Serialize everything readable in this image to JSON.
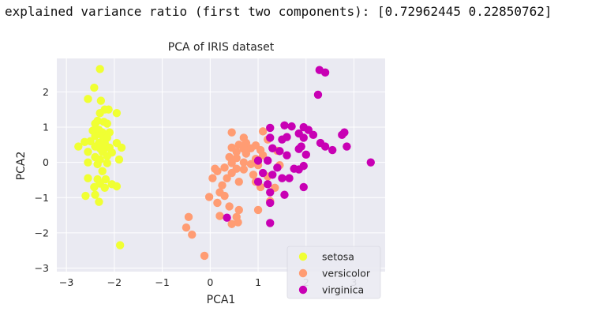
{
  "output": {
    "text": "explained variance ratio (first two components): [0.72962445 0.22850762]"
  },
  "chart_data": {
    "type": "scatter",
    "title": "PCA of IRIS dataset",
    "xlabel": "PCA1",
    "ylabel": "PCA2",
    "xlim": [
      -3.2,
      3.65
    ],
    "ylim": [
      -3.1,
      2.95
    ],
    "xticks": [
      -3,
      -2,
      -1,
      0,
      1,
      2,
      3
    ],
    "yticks": [
      -3,
      -2,
      -1,
      0,
      1,
      2
    ],
    "xtick_labels": [
      "−3",
      "−2",
      "−1",
      "0",
      "1",
      "2",
      "3"
    ],
    "ytick_labels": [
      "−3",
      "−2",
      "−1",
      "0",
      "1",
      "2"
    ],
    "grid": true,
    "background": "#eaeaf2",
    "legend_position": "lower-right",
    "series": [
      {
        "name": "setosa",
        "color": "#f0ff33",
        "points": [
          [
            -2.3,
            2.65
          ],
          [
            -2.42,
            2.12
          ],
          [
            -2.55,
            1.8
          ],
          [
            -2.28,
            1.75
          ],
          [
            -2.2,
            1.5
          ],
          [
            -2.12,
            1.5
          ],
          [
            -2.3,
            1.4
          ],
          [
            -1.95,
            1.4
          ],
          [
            -2.35,
            1.18
          ],
          [
            -2.22,
            1.15
          ],
          [
            -2.15,
            1.1
          ],
          [
            -2.4,
            1.1
          ],
          [
            -2.45,
            0.9
          ],
          [
            -2.32,
            0.92
          ],
          [
            -2.25,
            0.85
          ],
          [
            -2.1,
            0.85
          ],
          [
            -2.4,
            0.75
          ],
          [
            -2.25,
            0.75
          ],
          [
            -2.15,
            0.7
          ],
          [
            -2.5,
            0.6
          ],
          [
            -2.62,
            0.58
          ],
          [
            -2.75,
            0.45
          ],
          [
            -2.32,
            0.55
          ],
          [
            -2.2,
            0.55
          ],
          [
            -1.95,
            0.55
          ],
          [
            -2.4,
            0.45
          ],
          [
            -2.3,
            0.4
          ],
          [
            -2.2,
            0.4
          ],
          [
            -2.1,
            0.42
          ],
          [
            -1.85,
            0.42
          ],
          [
            -2.55,
            0.3
          ],
          [
            -2.25,
            0.3
          ],
          [
            -2.05,
            0.28
          ],
          [
            -2.4,
            0.15
          ],
          [
            -2.15,
            0.18
          ],
          [
            -1.9,
            0.08
          ],
          [
            -2.3,
            0.08
          ],
          [
            -2.55,
            0.0
          ],
          [
            -2.35,
            -0.05
          ],
          [
            -2.15,
            -0.02
          ],
          [
            -2.25,
            -0.25
          ],
          [
            -2.55,
            -0.45
          ],
          [
            -2.35,
            -0.48
          ],
          [
            -2.18,
            -0.48
          ],
          [
            -2.3,
            -0.6
          ],
          [
            -2.05,
            -0.62
          ],
          [
            -2.2,
            -0.72
          ],
          [
            -2.42,
            -0.7
          ],
          [
            -1.95,
            -0.68
          ],
          [
            -2.6,
            -0.95
          ],
          [
            -2.4,
            -0.92
          ],
          [
            -2.32,
            -1.12
          ],
          [
            -1.88,
            -2.35
          ]
        ]
      },
      {
        "name": "versicolor",
        "color": "#ff9c73",
        "points": [
          [
            0.45,
            0.85
          ],
          [
            1.1,
            0.88
          ],
          [
            0.7,
            0.7
          ],
          [
            1.2,
            0.65
          ],
          [
            0.75,
            0.55
          ],
          [
            0.6,
            0.5
          ],
          [
            0.95,
            0.48
          ],
          [
            0.45,
            0.42
          ],
          [
            0.85,
            0.4
          ],
          [
            0.7,
            0.38
          ],
          [
            1.05,
            0.35
          ],
          [
            1.4,
            0.33
          ],
          [
            0.55,
            0.3
          ],
          [
            0.75,
            0.25
          ],
          [
            1.1,
            0.2
          ],
          [
            0.4,
            0.15
          ],
          [
            0.55,
            0.12
          ],
          [
            0.95,
            0.1
          ],
          [
            1.2,
            0.05
          ],
          [
            0.7,
            0.0
          ],
          [
            0.45,
            -0.02
          ],
          [
            0.85,
            -0.05
          ],
          [
            1.0,
            -0.08
          ],
          [
            1.45,
            -0.08
          ],
          [
            0.1,
            -0.18
          ],
          [
            0.3,
            -0.15
          ],
          [
            0.55,
            -0.18
          ],
          [
            0.7,
            -0.2
          ],
          [
            0.15,
            -0.25
          ],
          [
            0.45,
            -0.3
          ],
          [
            0.9,
            -0.35
          ],
          [
            1.2,
            -0.4
          ],
          [
            0.35,
            -0.45
          ],
          [
            0.05,
            -0.45
          ],
          [
            0.6,
            -0.55
          ],
          [
            0.95,
            -0.55
          ],
          [
            0.25,
            -0.65
          ],
          [
            1.05,
            -0.7
          ],
          [
            1.35,
            -0.72
          ],
          [
            0.2,
            -0.85
          ],
          [
            0.3,
            -0.95
          ],
          [
            -0.02,
            -0.98
          ],
          [
            0.15,
            -1.15
          ],
          [
            1.25,
            -1.1
          ],
          [
            0.4,
            -1.25
          ],
          [
            0.6,
            -1.35
          ],
          [
            1.0,
            -1.35
          ],
          [
            0.2,
            -1.52
          ],
          [
            0.55,
            -1.55
          ],
          [
            0.45,
            -1.75
          ],
          [
            0.58,
            -1.7
          ],
          [
            -0.45,
            -1.55
          ],
          [
            -0.5,
            -1.85
          ],
          [
            -0.38,
            -2.05
          ],
          [
            -0.12,
            -2.65
          ]
        ]
      },
      {
        "name": "virginica",
        "color": "#c800b4",
        "points": [
          [
            2.28,
            2.62
          ],
          [
            2.4,
            2.55
          ],
          [
            2.25,
            1.92
          ],
          [
            1.25,
            0.98
          ],
          [
            1.55,
            1.05
          ],
          [
            1.7,
            1.02
          ],
          [
            1.95,
            1.0
          ],
          [
            2.05,
            0.92
          ],
          [
            1.85,
            0.82
          ],
          [
            2.15,
            0.78
          ],
          [
            2.8,
            0.85
          ],
          [
            2.75,
            0.78
          ],
          [
            1.6,
            0.72
          ],
          [
            1.95,
            0.7
          ],
          [
            1.25,
            0.7
          ],
          [
            1.5,
            0.65
          ],
          [
            2.3,
            0.55
          ],
          [
            2.4,
            0.45
          ],
          [
            1.9,
            0.45
          ],
          [
            1.3,
            0.4
          ],
          [
            2.85,
            0.45
          ],
          [
            2.55,
            0.35
          ],
          [
            1.85,
            0.38
          ],
          [
            1.45,
            0.32
          ],
          [
            1.6,
            0.2
          ],
          [
            2.0,
            0.22
          ],
          [
            1.0,
            0.05
          ],
          [
            1.2,
            0.05
          ],
          [
            3.35,
            0.0
          ],
          [
            1.95,
            -0.1
          ],
          [
            1.4,
            -0.15
          ],
          [
            1.75,
            -0.18
          ],
          [
            1.85,
            -0.2
          ],
          [
            1.1,
            -0.3
          ],
          [
            1.3,
            -0.35
          ],
          [
            1.5,
            -0.45
          ],
          [
            1.65,
            -0.45
          ],
          [
            1.0,
            -0.55
          ],
          [
            1.2,
            -0.62
          ],
          [
            1.95,
            -0.7
          ],
          [
            1.25,
            -0.85
          ],
          [
            1.55,
            -0.92
          ],
          [
            1.25,
            -1.15
          ],
          [
            0.35,
            -1.57
          ],
          [
            1.25,
            -1.72
          ]
        ]
      }
    ]
  }
}
